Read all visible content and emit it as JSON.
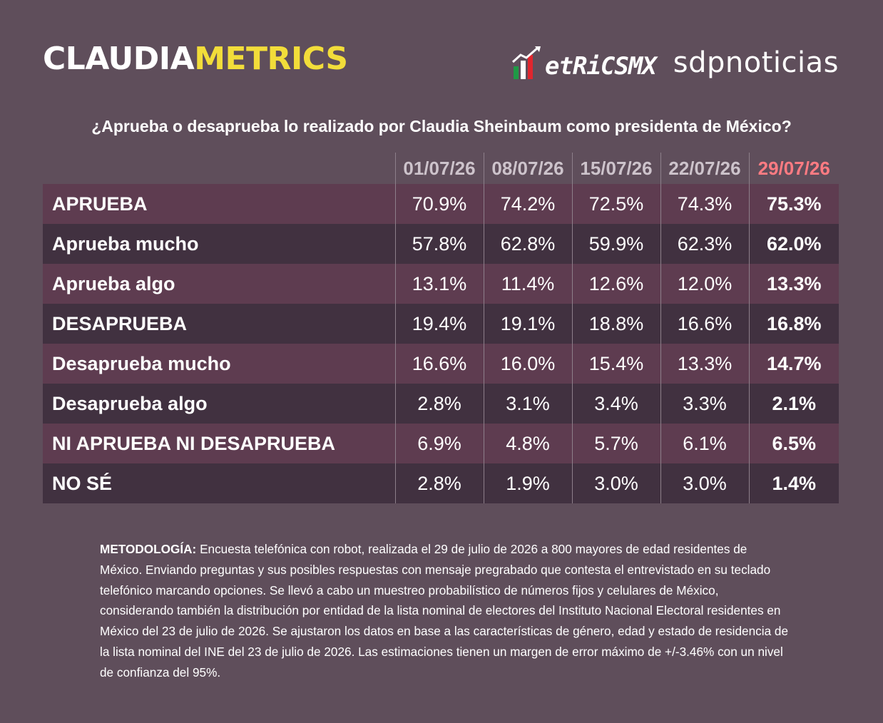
{
  "header": {
    "brand_left_part1": "CLAUDIA",
    "brand_left_part2": "METRICS",
    "brand_metrics": "etRiCSMX",
    "brand_sdp": "sdpnoticias",
    "colors": {
      "white": "#ffffff",
      "yellow": "#f2dd3a",
      "green": "#1f9a46",
      "red": "#e0262e"
    }
  },
  "chart_data": {
    "type": "table",
    "title": "¿Aprueba o desaprueba lo realizado por Claudia Sheinbaum como presidenta de México?",
    "columns": [
      "01/07/26",
      "08/07/26",
      "15/07/26",
      "22/07/26",
      "29/07/26"
    ],
    "highlight_column_color": "#ff7b82",
    "rows": [
      {
        "label": "APRUEBA",
        "values": [
          "70.9%",
          "74.2%",
          "72.5%",
          "74.3%",
          "75.3%"
        ]
      },
      {
        "label": "Aprueba mucho",
        "values": [
          "57.8%",
          "62.8%",
          "59.9%",
          "62.3%",
          "62.0%"
        ]
      },
      {
        "label": "Aprueba algo",
        "values": [
          "13.1%",
          "11.4%",
          "12.6%",
          "12.0%",
          "13.3%"
        ]
      },
      {
        "label": "DESAPRUEBA",
        "values": [
          "19.4%",
          "19.1%",
          "18.8%",
          "16.6%",
          "16.8%"
        ]
      },
      {
        "label": "Desaprueba mucho",
        "values": [
          "16.6%",
          "16.0%",
          "15.4%",
          "13.3%",
          "14.7%"
        ]
      },
      {
        "label": "Desaprueba algo",
        "values": [
          "2.8%",
          "3.1%",
          "3.4%",
          "3.3%",
          "2.1%"
        ]
      },
      {
        "label": "NI APRUEBA NI DESAPRUEBA",
        "values": [
          "6.9%",
          "4.8%",
          "5.7%",
          "6.1%",
          "6.5%"
        ]
      },
      {
        "label": "NO SÉ",
        "values": [
          "2.8%",
          "1.9%",
          "3.0%",
          "3.0%",
          "1.4%"
        ]
      }
    ]
  },
  "methodology": {
    "label": "METODOLOGÍA:",
    "text": "Encuesta telefónica con robot, realizada el 29 de julio de 2026 a 800 mayores de edad residentes de México. Enviando preguntas y sus posibles respuestas con mensaje pregrabado que contesta el entrevistado en su teclado telefónico marcando opciones. Se llevó a cabo un muestreo probabilístico de números fijos y celulares de México, considerando también la distribución por entidad de la lista nominal de electores del Instituto Nacional Electoral residentes en México del 23 de julio de 2026. Se ajustaron los datos en base a las características de género, edad y estado de residencia de la lista nominal del INE del 23 de julio de 2026. Las estimaciones tienen un margen de error máximo de +/-3.46% con un nivel de confianza del 95%."
  }
}
